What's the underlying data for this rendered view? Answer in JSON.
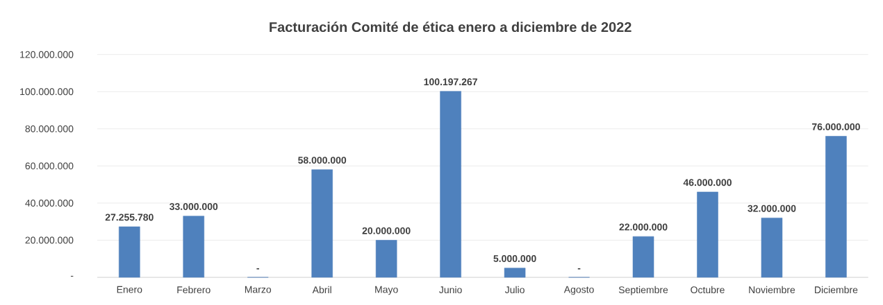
{
  "chart_data": {
    "type": "bar",
    "title": "Facturación Comité de ética enero a diciembre de 2022",
    "categories": [
      "Enero",
      "Febrero",
      "Marzo",
      "Abril",
      "Mayo",
      "Junio",
      "Julio",
      "Agosto",
      "Septiembre",
      "Octubre",
      "Noviembre",
      "Diciembre"
    ],
    "values": [
      27255780,
      33000000,
      0,
      58000000,
      20000000,
      100197267,
      5000000,
      0,
      22000000,
      46000000,
      32000000,
      76000000
    ],
    "value_labels": [
      "27.255.780",
      "33.000.000",
      "-",
      "58.000.000",
      "20.000.000",
      "100.197.267",
      "5.000.000",
      "-",
      "22.000.000",
      "46.000.000",
      "32.000.000",
      "76.000.000"
    ],
    "color": "#4f81bd",
    "ylim": [
      0,
      120000000
    ],
    "yticks": [
      {
        "value": 0,
        "label": "-"
      },
      {
        "value": 20000000,
        "label": "20.000.000"
      },
      {
        "value": 40000000,
        "label": "40.000.000"
      },
      {
        "value": 60000000,
        "label": "60.000.000"
      },
      {
        "value": 80000000,
        "label": "80.000.000"
      },
      {
        "value": 100000000,
        "label": "100.000.000"
      },
      {
        "value": 120000000,
        "label": "120.000.000"
      }
    ],
    "grid": "y"
  }
}
